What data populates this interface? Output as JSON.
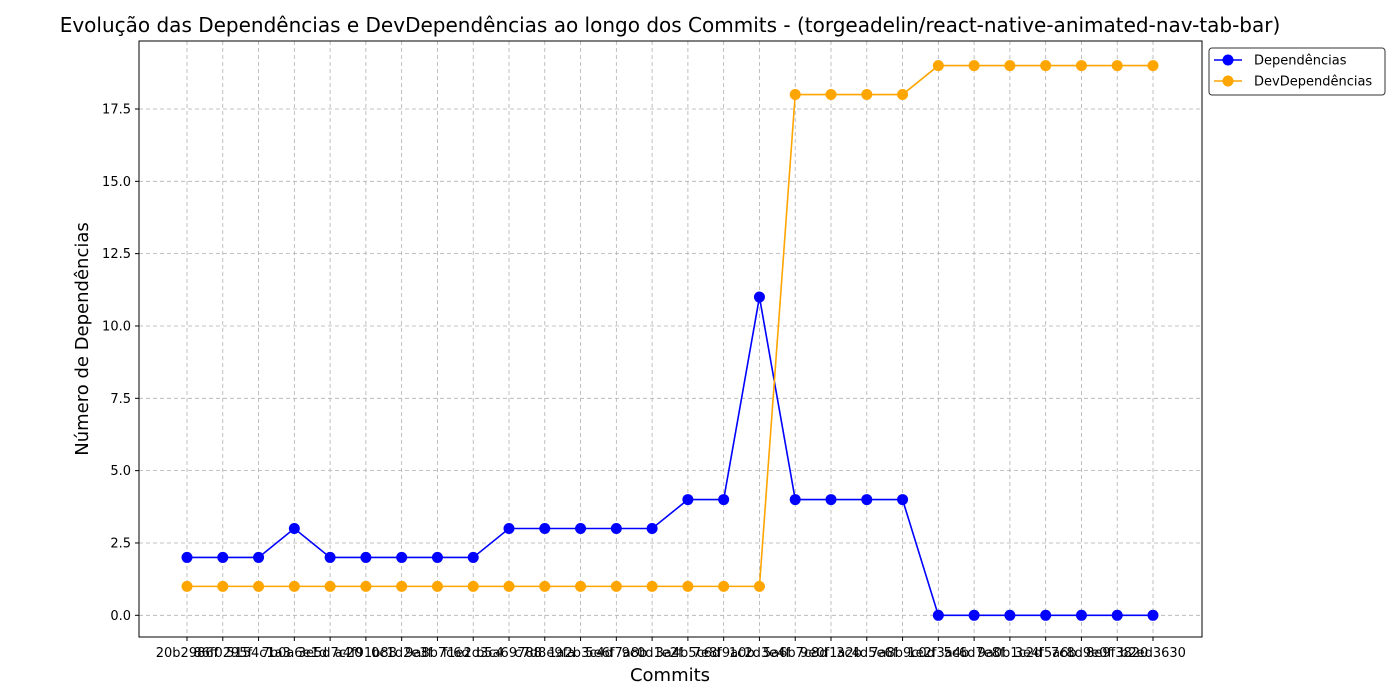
{
  "chart_data": {
    "type": "line",
    "title": "Evolução das Dependências e DevDependências ao longo dos Commits - (torgeadelin/react-native-animated-nav-tab-bar)",
    "xlabel": "Commits",
    "ylabel": "Número de Dependências",
    "ylim": [
      -0.75,
      19.85
    ],
    "yticks": [
      "0.0",
      "2.5",
      "5.0",
      "7.5",
      "10.0",
      "12.5",
      "15.0",
      "17.5"
    ],
    "grid": true,
    "legend_position": "upper-right-outside",
    "categories": [
      "20b2986f",
      "86f0295f",
      "5154c1a3",
      "7b0a6e1d",
      "3e5d7c20",
      "a4f91b88",
      "0c1d2e3f",
      "9a8b7c6d",
      "f1e2d3c4",
      "b5a69788",
      "c7d8e9fa",
      "1a2b3c4d",
      "5e6f7a8b",
      "9c0d1e2f",
      "3a4b5c6d",
      "7e8f9a0b",
      "1c2d3e4f",
      "5a6b7c8d",
      "9e0f1a2b",
      "3c4d5e6f",
      "7a8b9c0d",
      "1e2f3a4b",
      "5c6d7e8f",
      "9a0b1c2d",
      "3e4f5a6b",
      "7c8d9e0f",
      "8e9f3820",
      "b2ed3630"
    ],
    "series": [
      {
        "name": "Dependências",
        "color": "#0000ff",
        "values": [
          2,
          2,
          2,
          3,
          2,
          2,
          2,
          2,
          2,
          3,
          3,
          3,
          3,
          3,
          4,
          4,
          11,
          4,
          4,
          4,
          4,
          0,
          0,
          0,
          0,
          0,
          0,
          0
        ]
      },
      {
        "name": "DevDependências",
        "color": "#ffa500",
        "values": [
          1,
          1,
          1,
          1,
          1,
          1,
          1,
          1,
          1,
          1,
          1,
          1,
          1,
          1,
          1,
          1,
          1,
          18,
          18,
          18,
          18,
          19,
          19,
          19,
          19,
          19,
          19,
          19
        ]
      }
    ]
  }
}
